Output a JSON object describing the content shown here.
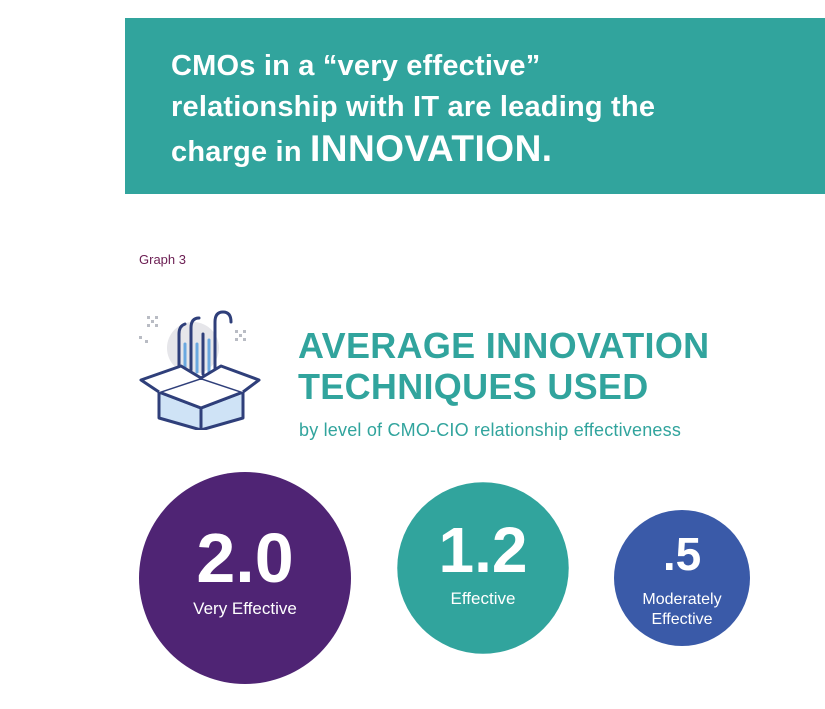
{
  "banner": {
    "line1": "CMOs in a “very effective”",
    "line2": "relationship with IT are leading the",
    "line3_prefix": "charge in ",
    "line3_emphasis": "INNOVATION."
  },
  "graph_label": "Graph 3",
  "title": {
    "line1": "AVERAGE INNOVATION",
    "line2": "TECHNIQUES USED"
  },
  "subtitle": "by level of CMO-CIO relationship effectiveness",
  "icon": "open-box-innovation-icon",
  "colors": {
    "teal": "#31a49d",
    "purple": "#4f2474",
    "blue": "#3a5aa8",
    "graph_label": "#6b1d52"
  },
  "chart_data": {
    "type": "bubble",
    "title": "AVERAGE INNOVATION TECHNIQUES USED",
    "subtitle": "by level of CMO-CIO relationship effectiveness",
    "categories": [
      "Very Effective",
      "Effective",
      "Moderately Effective"
    ],
    "values": [
      2.0,
      1.2,
      0.5
    ],
    "value_labels": [
      "2.0",
      "1.2",
      ".5"
    ],
    "category_lines": [
      [
        "Very Effective"
      ],
      [
        "Effective"
      ],
      [
        "Moderately",
        "Effective"
      ]
    ],
    "colors": [
      "#4f2474",
      "#31a49d",
      "#3a5aa8"
    ]
  }
}
